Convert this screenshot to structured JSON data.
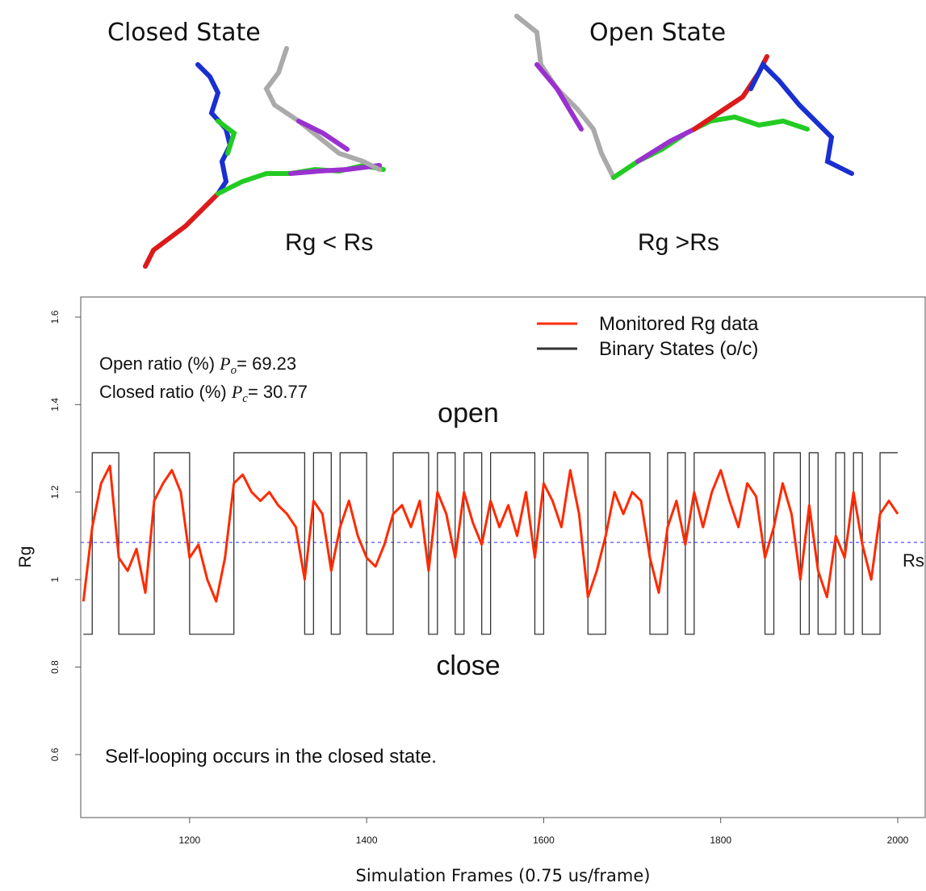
{
  "chart_data": {
    "type": "line",
    "panels": [
      {
        "title": "Closed State",
        "caption": "Rg < Rs"
      },
      {
        "title": "Open State",
        "caption": "Rg >Rs"
      }
    ],
    "x_label": "Simulation Frames (0.75 us/frame)",
    "y_label": "Rg",
    "x": [
      1080,
      1090,
      1100,
      1110,
      1120,
      1130,
      1140,
      1150,
      1160,
      1170,
      1180,
      1190,
      1200,
      1210,
      1220,
      1230,
      1240,
      1250,
      1260,
      1270,
      1280,
      1290,
      1300,
      1310,
      1320,
      1330,
      1340,
      1350,
      1360,
      1370,
      1380,
      1390,
      1400,
      1410,
      1420,
      1430,
      1440,
      1450,
      1460,
      1470,
      1480,
      1490,
      1500,
      1510,
      1520,
      1530,
      1540,
      1550,
      1560,
      1570,
      1580,
      1590,
      1600,
      1610,
      1620,
      1630,
      1640,
      1650,
      1660,
      1670,
      1680,
      1690,
      1700,
      1710,
      1720,
      1730,
      1740,
      1750,
      1760,
      1770,
      1780,
      1790,
      1800,
      1810,
      1820,
      1830,
      1840,
      1850,
      1860,
      1870,
      1880,
      1890,
      1900,
      1910,
      1920,
      1930,
      1940,
      1950,
      1960,
      1970,
      1980,
      1990,
      2000
    ],
    "series": [
      {
        "name": "Binary States (o/c)",
        "color": "#333333",
        "step": true,
        "values": [
          0.875,
          1.29,
          1.29,
          1.29,
          0.875,
          0.875,
          0.875,
          0.875,
          1.29,
          1.29,
          1.29,
          1.29,
          0.875,
          0.875,
          0.875,
          0.875,
          0.875,
          1.29,
          1.29,
          1.29,
          1.29,
          1.29,
          1.29,
          1.29,
          1.29,
          0.875,
          1.29,
          1.29,
          0.875,
          1.29,
          1.29,
          1.29,
          0.875,
          0.875,
          0.875,
          1.29,
          1.29,
          1.29,
          1.29,
          0.875,
          1.29,
          1.29,
          0.875,
          1.29,
          1.29,
          0.875,
          1.29,
          1.29,
          1.29,
          1.29,
          1.29,
          0.875,
          1.29,
          1.29,
          1.29,
          1.29,
          1.29,
          0.875,
          0.875,
          1.29,
          1.29,
          1.29,
          1.29,
          1.29,
          0.875,
          0.875,
          1.29,
          1.29,
          0.875,
          1.29,
          1.29,
          1.29,
          1.29,
          1.29,
          1.29,
          1.29,
          1.29,
          0.875,
          1.29,
          1.29,
          1.29,
          0.875,
          1.29,
          0.875,
          0.875,
          1.29,
          0.875,
          1.29,
          0.875,
          0.875,
          1.29,
          1.29,
          1.29
        ]
      },
      {
        "name": "Monitored Rg data",
        "color": "#ff2a00",
        "step": false,
        "values": [
          0.95,
          1.12,
          1.22,
          1.26,
          1.05,
          1.02,
          1.07,
          0.97,
          1.18,
          1.22,
          1.25,
          1.2,
          1.05,
          1.08,
          1.0,
          0.95,
          1.05,
          1.22,
          1.24,
          1.2,
          1.18,
          1.2,
          1.17,
          1.15,
          1.12,
          1.0,
          1.18,
          1.15,
          1.02,
          1.12,
          1.18,
          1.1,
          1.05,
          1.03,
          1.08,
          1.15,
          1.17,
          1.12,
          1.18,
          1.02,
          1.2,
          1.15,
          1.05,
          1.2,
          1.13,
          1.08,
          1.18,
          1.12,
          1.17,
          1.1,
          1.2,
          1.05,
          1.22,
          1.18,
          1.12,
          1.25,
          1.15,
          0.96,
          1.02,
          1.1,
          1.2,
          1.15,
          1.2,
          1.18,
          1.05,
          0.97,
          1.12,
          1.18,
          1.08,
          1.2,
          1.12,
          1.2,
          1.25,
          1.18,
          1.12,
          1.22,
          1.19,
          1.05,
          1.12,
          1.22,
          1.15,
          1.0,
          1.17,
          1.02,
          0.96,
          1.1,
          1.05,
          1.2,
          1.08,
          1.0,
          1.15,
          1.18,
          1.15
        ]
      }
    ],
    "legend_order": [
      1,
      0
    ],
    "threshold": {
      "value": 1.085,
      "label": "Rs",
      "color": "#6f6fff"
    },
    "xlim": [
      1077,
      2031
    ],
    "ylim": [
      0.456,
      1.646
    ],
    "xticks": [
      1200,
      1400,
      1600,
      1800,
      2000
    ],
    "yticks": [
      0.6,
      0.8,
      1.0,
      1.2,
      1.4,
      1.6
    ],
    "ratios": [
      {
        "text": "Open ratio (%) ",
        "symbol": "P",
        "subscript": "o",
        "value_text": "= 69.23"
      },
      {
        "text": "Closed ratio (%) ",
        "symbol": "P",
        "subscript": "c",
        "value_text": "= 30.77"
      }
    ],
    "state_labels": [
      "open",
      "close"
    ],
    "note": "Self-looping occurs in the closed state."
  }
}
